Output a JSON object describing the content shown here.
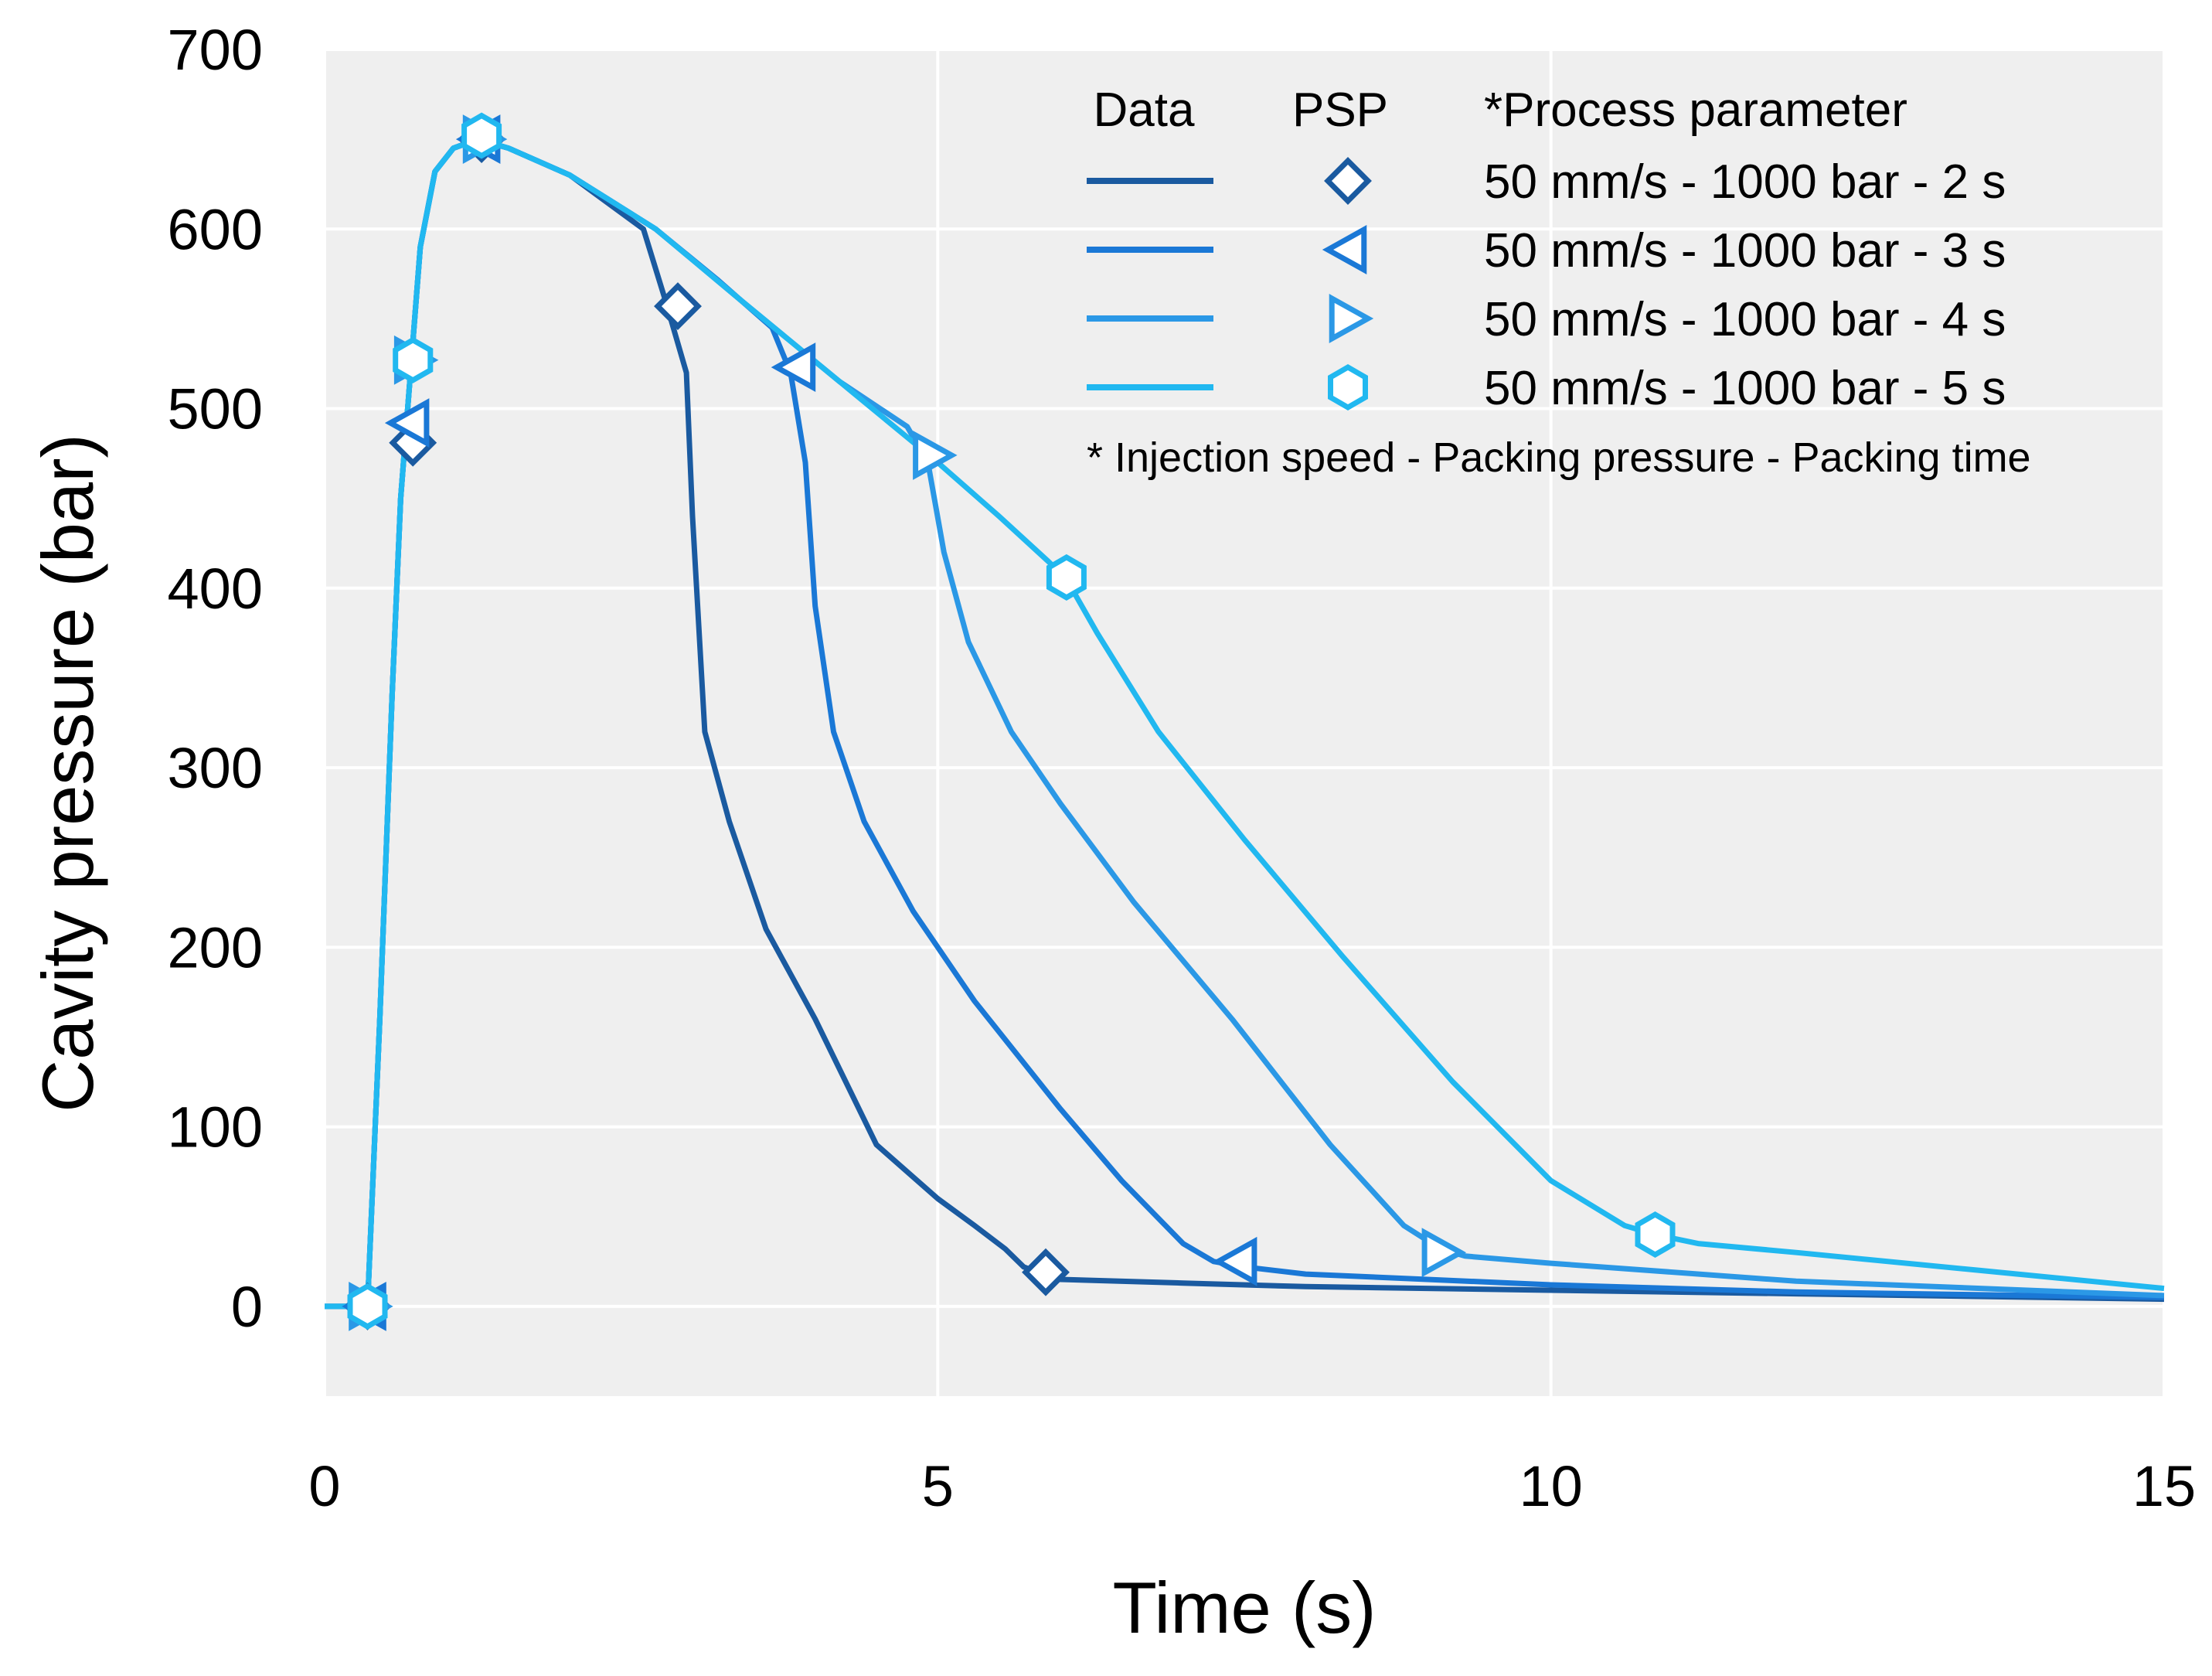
{
  "chart_data": {
    "type": "line",
    "xlabel": "Time (s)",
    "ylabel": "Cavity pressure (bar)",
    "xlim": [
      0,
      15
    ],
    "ylim": [
      -50,
      700
    ],
    "x_ticks": [
      "0",
      "5",
      "10",
      "15"
    ],
    "y_ticks": [
      "0",
      "100",
      "200",
      "300",
      "400",
      "500",
      "600",
      "700"
    ],
    "grid": true,
    "legend_position": "top-right",
    "legend": {
      "data_header": "Data",
      "psp_header": "PSP",
      "param_header": "*Process parameter",
      "footnote": "* Injection speed - Packing pressure - Packing time"
    },
    "series": [
      {
        "name": "50 mm/s - 1000 bar - 2 s",
        "color": "#1a5aa0",
        "marker": "diamond",
        "x": [
          0,
          0.35,
          0.45,
          0.55,
          0.62,
          0.7,
          0.78,
          0.9,
          1.05,
          1.25,
          1.5,
          2.0,
          2.6,
          2.78,
          2.95,
          3.0,
          3.1,
          3.3,
          3.6,
          4.0,
          4.5,
          5.0,
          5.3,
          5.55,
          5.7,
          5.85,
          6.0,
          7.0,
          8.0,
          10.0,
          12.0,
          15.0
        ],
        "y": [
          0,
          0,
          160,
          340,
          450,
          520,
          590,
          632,
          645,
          650,
          645,
          630,
          600,
          560,
          520,
          440,
          320,
          270,
          210,
          160,
          90,
          60,
          45,
          32,
          22,
          18,
          15,
          13,
          11,
          9,
          7,
          4
        ],
        "psp": [
          [
            0.35,
            0
          ],
          [
            0.72,
            481
          ],
          [
            1.28,
            650
          ],
          [
            2.88,
            557
          ],
          [
            5.88,
            19
          ]
        ]
      },
      {
        "name": "50 mm/s - 1000 bar - 3 s",
        "color": "#1a78d6",
        "marker": "triangle-left",
        "x": [
          0,
          0.35,
          0.45,
          0.55,
          0.62,
          0.7,
          0.78,
          0.9,
          1.05,
          1.25,
          1.5,
          2.0,
          2.7,
          3.2,
          3.65,
          3.8,
          3.92,
          4.0,
          4.15,
          4.4,
          4.8,
          5.3,
          6.0,
          6.5,
          7.0,
          7.25,
          7.5,
          8.0,
          10.0,
          12.0,
          15.0
        ],
        "y": [
          0,
          0,
          160,
          340,
          450,
          520,
          590,
          632,
          645,
          650,
          645,
          630,
          600,
          572,
          545,
          520,
          470,
          390,
          320,
          270,
          220,
          170,
          110,
          70,
          35,
          25,
          22,
          18,
          12,
          8,
          5
        ],
        "psp": [
          [
            0.35,
            0
          ],
          [
            0.7,
            492
          ],
          [
            1.28,
            650
          ],
          [
            3.85,
            523
          ],
          [
            7.45,
            25
          ]
        ]
      },
      {
        "name": "50 mm/s - 1000 bar - 4 s",
        "color": "#2b98e6",
        "marker": "triangle-right",
        "x": [
          0,
          0.35,
          0.45,
          0.55,
          0.62,
          0.7,
          0.78,
          0.9,
          1.05,
          1.25,
          1.5,
          2.0,
          2.7,
          3.4,
          4.2,
          4.75,
          4.92,
          5.05,
          5.25,
          5.6,
          6.0,
          6.6,
          7.4,
          8.2,
          8.8,
          9.1,
          9.3,
          10.0,
          12.0,
          15.0
        ],
        "y": [
          0,
          0,
          160,
          340,
          450,
          520,
          590,
          632,
          645,
          650,
          645,
          630,
          600,
          560,
          515,
          490,
          470,
          420,
          370,
          320,
          280,
          225,
          160,
          90,
          45,
          32,
          28,
          24,
          14,
          6
        ],
        "psp": [
          [
            0.35,
            0
          ],
          [
            0.72,
            527
          ],
          [
            1.28,
            650
          ],
          [
            4.95,
            474
          ],
          [
            9.1,
            30
          ]
        ]
      },
      {
        "name": "50 mm/s - 1000 bar - 5 s",
        "color": "#21b8f0",
        "marker": "hexagon",
        "x": [
          0,
          0.35,
          0.45,
          0.55,
          0.62,
          0.7,
          0.78,
          0.9,
          1.05,
          1.25,
          1.5,
          2.0,
          2.7,
          3.4,
          4.2,
          5.0,
          5.5,
          5.9,
          6.05,
          6.3,
          6.8,
          7.5,
          8.3,
          9.2,
          10.0,
          10.6,
          10.85,
          11.2,
          12.0,
          13.5,
          15.0
        ],
        "y": [
          0,
          0,
          160,
          340,
          450,
          520,
          590,
          632,
          645,
          650,
          645,
          630,
          600,
          560,
          515,
          470,
          440,
          415,
          405,
          375,
          320,
          260,
          195,
          125,
          70,
          45,
          40,
          35,
          30,
          20,
          10
        ],
        "psp": [
          [
            0.35,
            0
          ],
          [
            0.72,
            527
          ],
          [
            1.28,
            652
          ],
          [
            6.05,
            406
          ],
          [
            10.85,
            40
          ]
        ]
      }
    ]
  }
}
